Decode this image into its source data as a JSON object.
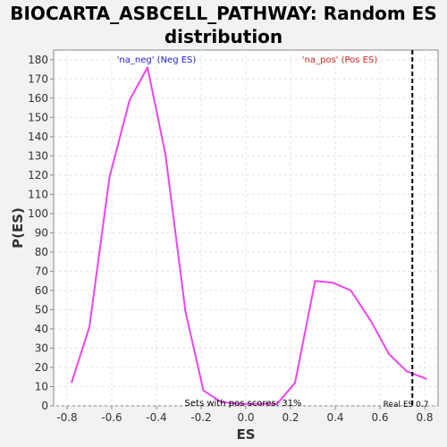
{
  "chart_data": {
    "type": "line",
    "title_line1": "BIOCARTA_ASBCELL_PATHWAY: Random ES",
    "title_line2": "distribution",
    "xlabel": "ES",
    "ylabel": "P(ES)",
    "xlim": [
      -0.86,
      0.86
    ],
    "ylim": [
      0,
      185
    ],
    "x_ticks": [
      -0.8,
      -0.6,
      -0.4,
      -0.2,
      0.0,
      0.2,
      0.4,
      0.6,
      0.8
    ],
    "x_tick_labels": [
      "-0.8",
      "-0.6",
      "-0.4",
      "-0.2",
      "0.0",
      "0.2",
      "0.4",
      "0.6",
      "0.8"
    ],
    "y_ticks": [
      0,
      10,
      20,
      30,
      40,
      50,
      60,
      70,
      80,
      90,
      100,
      110,
      120,
      130,
      140,
      150,
      160,
      170,
      180
    ],
    "grid": true,
    "series": [
      {
        "color": "#ee44ee",
        "x": [
          -0.78,
          -0.7,
          -0.61,
          -0.52,
          -0.44,
          -0.36,
          -0.27,
          -0.19,
          -0.11,
          -0.03,
          0.06,
          0.14,
          0.22,
          0.31,
          0.39,
          0.47,
          0.56,
          0.64,
          0.72,
          0.81
        ],
        "y": [
          12,
          41,
          119,
          159,
          176,
          131,
          49,
          8,
          2,
          1,
          1,
          1,
          12,
          65,
          64,
          60,
          44,
          27,
          18,
          14
        ]
      }
    ],
    "real_es": {
      "x": 0.745,
      "label": "Real ES 0.7"
    },
    "annotations": {
      "neg_label": "'na_neg' (Neg ES)",
      "neg_color": "#2222cc",
      "pos_label": "'na_pos' (Pos ES)",
      "pos_color": "#dd2222",
      "pos_scores_label": "Sets with pos scores: 31%"
    }
  }
}
